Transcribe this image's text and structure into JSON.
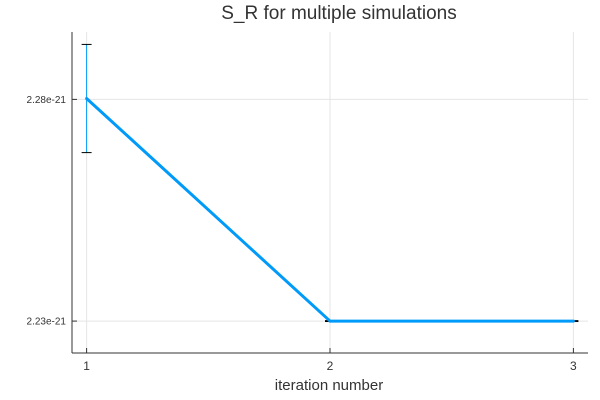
{
  "chart_data": {
    "type": "line",
    "title": "S_R for multiple simulations",
    "xlabel": "iteration number",
    "ylabel": "",
    "x": [
      1,
      2,
      3
    ],
    "x_ticks": [
      "1",
      "2",
      "3"
    ],
    "y_ticks": [
      {
        "value": 2.28e-21,
        "label": "2.28e-21"
      },
      {
        "value": 2.23e-21,
        "label": "2.23e-21"
      }
    ],
    "xlim": [
      0.94,
      3.06
    ],
    "ylim": [
      2.2228e-21,
      2.2952e-21
    ],
    "grid": true,
    "legend": "none",
    "series": [
      {
        "values": [
          2.2802e-21,
          2.23e-21,
          2.23e-21
        ],
        "error": [
          1.22e-23,
          1e-25,
          1e-25
        ],
        "color": "#009af9"
      }
    ],
    "colors": {
      "grid": "#e5e5e5",
      "axis": "#333333",
      "errorbar": "#000000"
    }
  }
}
